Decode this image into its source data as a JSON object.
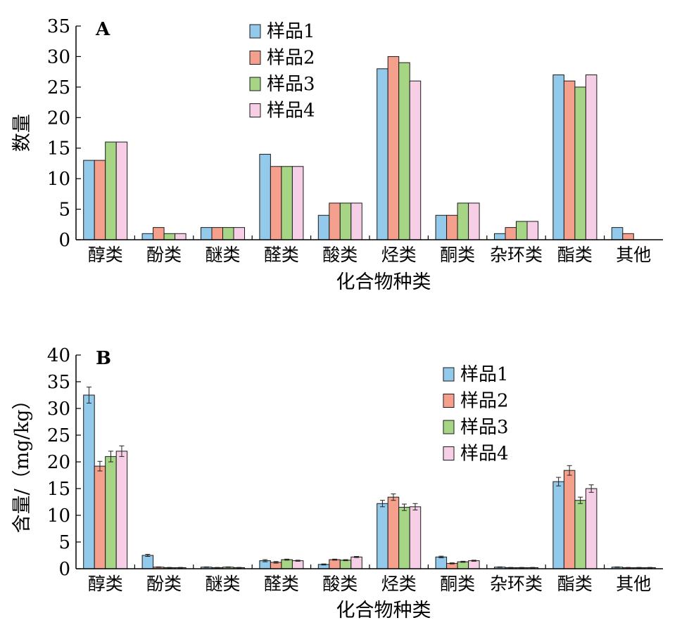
{
  "chart_data": [
    {
      "type": "bar",
      "panel_label": "A",
      "xlabel": "化合物种类",
      "ylabel": "数量",
      "ylim": [
        0,
        35
      ],
      "yticks": [
        0,
        5,
        10,
        15,
        20,
        25,
        30,
        35
      ],
      "legend_position": "top-center",
      "categories": [
        "醇类",
        "酚类",
        "醚类",
        "醛类",
        "酸类",
        "烃类",
        "酮类",
        "杂环类",
        "酯类",
        "其他"
      ],
      "series": [
        {
          "name": "样品1",
          "color": "#93c9ea",
          "values": [
            13,
            1,
            2,
            14,
            4,
            28,
            4,
            1,
            27,
            2
          ]
        },
        {
          "name": "样品2",
          "color": "#f5a08c",
          "values": [
            13,
            2,
            2,
            12,
            6,
            30,
            4,
            2,
            26,
            1
          ]
        },
        {
          "name": "样品3",
          "color": "#a6d685",
          "values": [
            16,
            1,
            2,
            12,
            6,
            29,
            6,
            3,
            25,
            0
          ]
        },
        {
          "name": "样品4",
          "color": "#f6cfe6",
          "values": [
            16,
            1,
            2,
            12,
            6,
            26,
            6,
            3,
            27,
            0
          ]
        }
      ]
    },
    {
      "type": "bar",
      "panel_label": "B",
      "xlabel": "化合物种类",
      "ylabel": "含量/（mg/kg）",
      "ylim": [
        0,
        40
      ],
      "yticks": [
        0,
        5,
        10,
        15,
        20,
        25,
        30,
        35,
        40
      ],
      "legend_position": "top-right",
      "error_bars": true,
      "categories": [
        "醇类",
        "酚类",
        "醚类",
        "醛类",
        "酸类",
        "烃类",
        "酮类",
        "杂环类",
        "酯类",
        "其他"
      ],
      "series": [
        {
          "name": "样品1",
          "color": "#93c9ea",
          "values": [
            32.5,
            2.5,
            0.3,
            1.5,
            0.8,
            12.2,
            2.2,
            0.3,
            16.3,
            0.3
          ],
          "errors": [
            1.5,
            0.2,
            0.05,
            0.2,
            0.1,
            0.6,
            0.15,
            0.05,
            0.8,
            0.05
          ]
        },
        {
          "name": "样品2",
          "color": "#f5a08c",
          "values": [
            19.2,
            0.3,
            0.2,
            1.2,
            1.7,
            13.4,
            1.0,
            0.2,
            18.4,
            0.2
          ],
          "errors": [
            0.9,
            0.05,
            0.05,
            0.15,
            0.1,
            0.6,
            0.1,
            0.05,
            0.9,
            0.05
          ]
        },
        {
          "name": "样品3",
          "color": "#a6d685",
          "values": [
            21.0,
            0.2,
            0.3,
            1.7,
            1.6,
            11.5,
            1.3,
            0.2,
            12.8,
            0.2
          ],
          "errors": [
            1.0,
            0.05,
            0.05,
            0.1,
            0.1,
            0.6,
            0.1,
            0.05,
            0.6,
            0.05
          ]
        },
        {
          "name": "样品4",
          "color": "#f6cfe6",
          "values": [
            22.0,
            0.2,
            0.2,
            1.5,
            2.2,
            11.6,
            1.5,
            0.2,
            15.0,
            0.2
          ],
          "errors": [
            1.0,
            0.05,
            0.05,
            0.1,
            0.1,
            0.6,
            0.1,
            0.05,
            0.7,
            0.05
          ]
        }
      ]
    }
  ]
}
